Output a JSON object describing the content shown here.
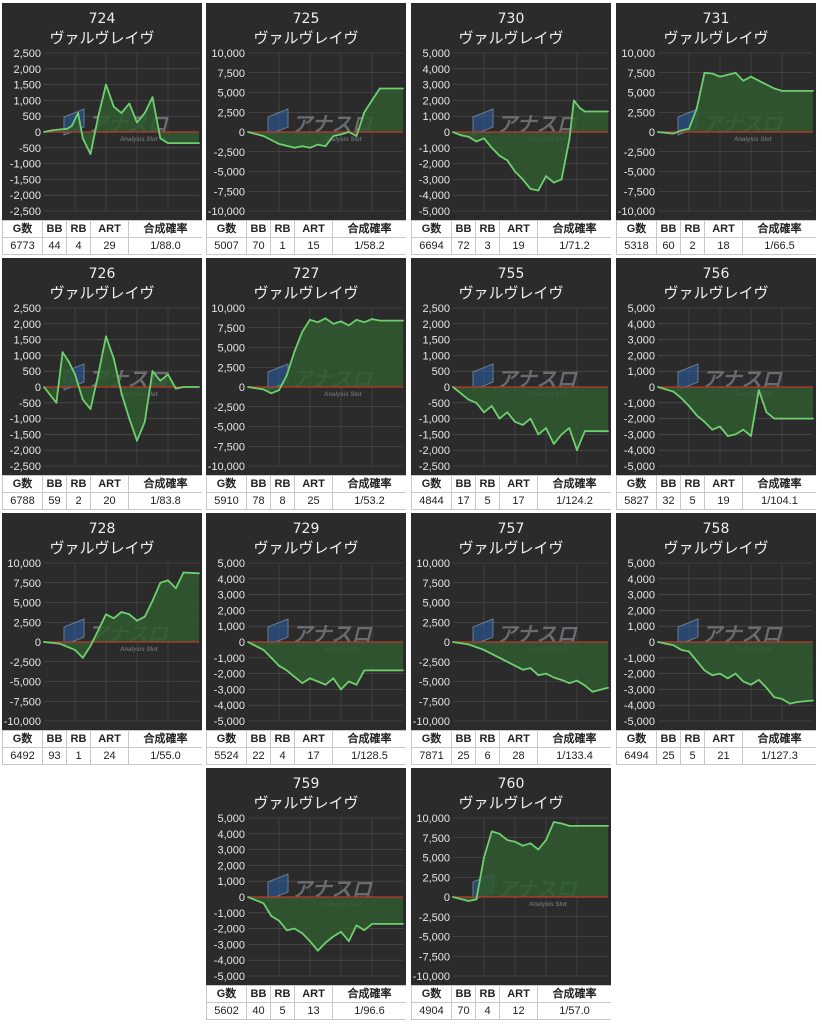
{
  "machine_name": "ヴァルヴレイヴ",
  "stat_headers": [
    "G数",
    "BB",
    "RB",
    "ART",
    "合成確率"
  ],
  "colors": {
    "panel": "#2b2b2b",
    "line": "#6fcf6f",
    "fill": "#2f5a2f",
    "zero_line": "#c0392b",
    "grid": "#555555"
  },
  "watermark": {
    "main": "アナスロ",
    "sub": "Analysis Slot"
  },
  "chart_data": [
    {
      "type": "area",
      "title": "724",
      "subtitle": "ヴァルヴレイヴ",
      "ylim": [
        -2500,
        2500
      ],
      "yticks": [
        "2,500",
        "2,000",
        "1,500",
        "1,000",
        "500",
        "0",
        "-500",
        "-1,000",
        "-1,500",
        "-2,000",
        "-2,500"
      ],
      "x": [
        0,
        0.05,
        0.1,
        0.15,
        0.18,
        0.22,
        0.25,
        0.3,
        0.35,
        0.4,
        0.45,
        0.5,
        0.55,
        0.6,
        0.65,
        0.7,
        0.75,
        0.8,
        0.85,
        1
      ],
      "y": [
        0,
        50,
        80,
        100,
        200,
        600,
        -200,
        -700,
        500,
        1500,
        800,
        600,
        900,
        300,
        600,
        1100,
        -200,
        -350,
        -350,
        -350
      ],
      "stats": {
        "g": "6773",
        "bb": "44",
        "rb": "4",
        "art": "29",
        "rate": "1/88.0"
      }
    },
    {
      "type": "area",
      "title": "725",
      "subtitle": "ヴァルヴレイヴ",
      "ylim": [
        -10000,
        10000
      ],
      "yticks": [
        "10,000",
        "7,500",
        "5,000",
        "2,500",
        "0",
        "-2,500",
        "-5,000",
        "-7,500",
        "-10,000"
      ],
      "x": [
        0,
        0.1,
        0.2,
        0.3,
        0.35,
        0.4,
        0.45,
        0.5,
        0.55,
        0.6,
        0.65,
        0.7,
        0.75,
        0.8,
        0.85,
        1
      ],
      "y": [
        0,
        -500,
        -1500,
        -2000,
        -1800,
        -2000,
        -1600,
        -1800,
        -500,
        -300,
        0,
        -500,
        2500,
        4000,
        5500,
        5500
      ],
      "stats": {
        "g": "5007",
        "bb": "70",
        "rb": "1",
        "art": "15",
        "rate": "1/58.2"
      }
    },
    {
      "type": "area",
      "title": "730",
      "subtitle": "ヴァルヴレイヴ",
      "ylim": [
        -5000,
        5000
      ],
      "yticks": [
        "5,000",
        "4,000",
        "3,000",
        "2,000",
        "1,000",
        "0",
        "-1,000",
        "-2,000",
        "-3,000",
        "-4,000",
        "-5,000"
      ],
      "x": [
        0,
        0.05,
        0.1,
        0.15,
        0.2,
        0.25,
        0.3,
        0.35,
        0.4,
        0.45,
        0.5,
        0.55,
        0.6,
        0.65,
        0.7,
        0.75,
        0.78,
        0.82,
        0.85,
        1
      ],
      "y": [
        0,
        -200,
        -300,
        -600,
        -400,
        -1000,
        -1500,
        -1800,
        -2500,
        -3000,
        -3600,
        -3700,
        -2800,
        -3200,
        -3000,
        -500,
        2000,
        1500,
        1300,
        1300
      ],
      "stats": {
        "g": "6694",
        "bb": "72",
        "rb": "3",
        "art": "19",
        "rate": "1/71.2"
      }
    },
    {
      "type": "area",
      "title": "731",
      "subtitle": "ヴァルヴレイヴ",
      "ylim": [
        -10000,
        10000
      ],
      "yticks": [
        "10,000",
        "7,500",
        "5,000",
        "2,500",
        "0",
        "-2,500",
        "-5,000",
        "-7,500",
        "-10,000"
      ],
      "x": [
        0,
        0.1,
        0.15,
        0.2,
        0.25,
        0.3,
        0.35,
        0.4,
        0.5,
        0.55,
        0.6,
        0.65,
        0.7,
        0.75,
        0.8,
        1
      ],
      "y": [
        0,
        -200,
        200,
        400,
        3000,
        7500,
        7400,
        7000,
        7500,
        6500,
        7000,
        6500,
        6000,
        5500,
        5200,
        5200
      ],
      "stats": {
        "g": "5318",
        "bb": "60",
        "rb": "2",
        "art": "18",
        "rate": "1/66.5"
      }
    },
    {
      "type": "area",
      "title": "726",
      "subtitle": "ヴァルヴレイヴ",
      "ylim": [
        -2500,
        2500
      ],
      "yticks": [
        "2,500",
        "2,000",
        "1,500",
        "1,000",
        "500",
        "0",
        "-500",
        "-1,000",
        "-1,500",
        "-2,000",
        "-2,500"
      ],
      "x": [
        0,
        0.08,
        0.12,
        0.16,
        0.2,
        0.25,
        0.3,
        0.35,
        0.4,
        0.45,
        0.5,
        0.55,
        0.6,
        0.65,
        0.7,
        0.75,
        0.8,
        0.85,
        0.9,
        1
      ],
      "y": [
        0,
        -500,
        1100,
        800,
        400,
        -400,
        -700,
        400,
        1600,
        900,
        -200,
        -1000,
        -1700,
        -1100,
        500,
        200,
        400,
        -50,
        0,
        0
      ],
      "stats": {
        "g": "6788",
        "bb": "59",
        "rb": "2",
        "art": "20",
        "rate": "1/83.8"
      }
    },
    {
      "type": "area",
      "title": "727",
      "subtitle": "ヴァルヴレイヴ",
      "ylim": [
        -10000,
        10000
      ],
      "yticks": [
        "10,000",
        "7,500",
        "5,000",
        "2,500",
        "0",
        "-2,500",
        "-5,000",
        "-7,500",
        "-10,000"
      ],
      "x": [
        0,
        0.1,
        0.15,
        0.2,
        0.25,
        0.3,
        0.35,
        0.4,
        0.45,
        0.5,
        0.55,
        0.6,
        0.65,
        0.7,
        0.75,
        0.8,
        0.85,
        1
      ],
      "y": [
        0,
        -300,
        -800,
        -400,
        1500,
        4500,
        7000,
        8500,
        8200,
        8700,
        8000,
        8300,
        7800,
        8500,
        8200,
        8600,
        8400,
        8400
      ],
      "stats": {
        "g": "5910",
        "bb": "78",
        "rb": "8",
        "art": "25",
        "rate": "1/53.2"
      }
    },
    {
      "type": "area",
      "title": "755",
      "subtitle": "ヴァルヴレイヴ",
      "ylim": [
        -2500,
        2500
      ],
      "yticks": [
        "2,500",
        "2,000",
        "1,500",
        "1,000",
        "500",
        "0",
        "-500",
        "-1,000",
        "-1,500",
        "-2,000",
        "-2,500"
      ],
      "x": [
        0,
        0.05,
        0.1,
        0.15,
        0.2,
        0.25,
        0.3,
        0.35,
        0.4,
        0.45,
        0.5,
        0.55,
        0.6,
        0.65,
        0.7,
        0.75,
        0.8,
        0.85,
        1
      ],
      "y": [
        0,
        -200,
        -400,
        -500,
        -800,
        -600,
        -1000,
        -800,
        -1100,
        -1200,
        -1000,
        -1500,
        -1300,
        -1800,
        -1500,
        -1300,
        -2000,
        -1400,
        -1400
      ],
      "stats": {
        "g": "4844",
        "bb": "17",
        "rb": "5",
        "art": "17",
        "rate": "1/124.2"
      }
    },
    {
      "type": "area",
      "title": "756",
      "subtitle": "ヴァルヴレイヴ",
      "ylim": [
        -5000,
        5000
      ],
      "yticks": [
        "5,000",
        "4,000",
        "3,000",
        "2,000",
        "1,000",
        "0",
        "-1,000",
        "-2,000",
        "-3,000",
        "-4,000",
        "-5,000"
      ],
      "x": [
        0,
        0.1,
        0.15,
        0.2,
        0.25,
        0.3,
        0.35,
        0.4,
        0.45,
        0.5,
        0.55,
        0.6,
        0.65,
        0.7,
        0.75,
        1
      ],
      "y": [
        0,
        -300,
        -700,
        -1200,
        -1800,
        -2200,
        -2700,
        -2500,
        -3100,
        -3000,
        -2700,
        -3100,
        -200,
        -1600,
        -2000,
        -2000
      ],
      "stats": {
        "g": "5827",
        "bb": "32",
        "rb": "5",
        "art": "19",
        "rate": "1/104.1"
      }
    },
    {
      "type": "area",
      "title": "728",
      "subtitle": "ヴァルヴレイヴ",
      "ylim": [
        -10000,
        10000
      ],
      "yticks": [
        "10,000",
        "7,500",
        "5,000",
        "2,500",
        "0",
        "-2,500",
        "-5,000",
        "-7,500",
        "-10,000"
      ],
      "x": [
        0,
        0.1,
        0.2,
        0.25,
        0.3,
        0.35,
        0.4,
        0.45,
        0.5,
        0.55,
        0.6,
        0.65,
        0.7,
        0.75,
        0.8,
        0.85,
        0.9,
        1
      ],
      "y": [
        0,
        -200,
        -1000,
        -2000,
        -500,
        1500,
        3500,
        3000,
        3800,
        3500,
        2700,
        3200,
        5200,
        7500,
        7800,
        6800,
        8800,
        8700
      ],
      "stats": {
        "g": "6492",
        "bb": "93",
        "rb": "1",
        "art": "24",
        "rate": "1/55.0"
      }
    },
    {
      "type": "area",
      "title": "729",
      "subtitle": "ヴァルヴレイヴ",
      "ylim": [
        -5000,
        5000
      ],
      "yticks": [
        "5,000",
        "4,000",
        "3,000",
        "2,000",
        "1,000",
        "0",
        "-1,000",
        "-2,000",
        "-3,000",
        "-4,000",
        "-5,000"
      ],
      "x": [
        0,
        0.1,
        0.15,
        0.2,
        0.25,
        0.3,
        0.35,
        0.4,
        0.45,
        0.5,
        0.55,
        0.6,
        0.65,
        0.7,
        0.75,
        1
      ],
      "y": [
        0,
        -500,
        -1000,
        -1500,
        -1800,
        -2200,
        -2600,
        -2300,
        -2500,
        -2700,
        -2300,
        -3000,
        -2500,
        -2700,
        -1800,
        -1800
      ],
      "stats": {
        "g": "5524",
        "bb": "22",
        "rb": "4",
        "art": "17",
        "rate": "1/128.5"
      }
    },
    {
      "type": "area",
      "title": "757",
      "subtitle": "ヴァルヴレイヴ",
      "ylim": [
        -10000,
        10000
      ],
      "yticks": [
        "10,000",
        "7,500",
        "5,000",
        "2,500",
        "0",
        "-2,500",
        "-5,000",
        "-7,500",
        "-10,000"
      ],
      "x": [
        0,
        0.1,
        0.2,
        0.3,
        0.35,
        0.4,
        0.45,
        0.5,
        0.55,
        0.6,
        0.65,
        0.7,
        0.75,
        0.8,
        0.85,
        0.9,
        1
      ],
      "y": [
        0,
        -300,
        -1000,
        -2000,
        -2500,
        -3000,
        -3500,
        -3300,
        -4200,
        -4000,
        -4500,
        -4800,
        -5200,
        -4900,
        -5500,
        -6300,
        -5800
      ],
      "stats": {
        "g": "7871",
        "bb": "25",
        "rb": "6",
        "art": "28",
        "rate": "1/133.4"
      }
    },
    {
      "type": "area",
      "title": "758",
      "subtitle": "ヴァルヴレイヴ",
      "ylim": [
        -5000,
        5000
      ],
      "yticks": [
        "5,000",
        "4,000",
        "3,000",
        "2,000",
        "1,000",
        "0",
        "-1,000",
        "-2,000",
        "-3,000",
        "-4,000",
        "-5,000"
      ],
      "x": [
        0,
        0.1,
        0.15,
        0.2,
        0.25,
        0.3,
        0.35,
        0.4,
        0.45,
        0.5,
        0.55,
        0.6,
        0.65,
        0.7,
        0.75,
        0.8,
        0.85,
        0.9,
        1
      ],
      "y": [
        0,
        -200,
        -500,
        -600,
        -1200,
        -1800,
        -2100,
        -2000,
        -2300,
        -2000,
        -2500,
        -2700,
        -2400,
        -2900,
        -3500,
        -3600,
        -3900,
        -3800,
        -3700
      ],
      "stats": {
        "g": "6494",
        "bb": "25",
        "rb": "5",
        "art": "21",
        "rate": "1/127.3"
      }
    },
    {
      "type": "area",
      "title": "759",
      "subtitle": "ヴァルヴレイヴ",
      "ylim": [
        -5000,
        5000
      ],
      "yticks": [
        "5,000",
        "4,000",
        "3,000",
        "2,000",
        "1,000",
        "0",
        "-1,000",
        "-2,000",
        "-3,000",
        "-4,000",
        "-5,000"
      ],
      "x": [
        0,
        0.1,
        0.15,
        0.2,
        0.25,
        0.3,
        0.35,
        0.4,
        0.45,
        0.5,
        0.55,
        0.6,
        0.65,
        0.7,
        0.75,
        0.8,
        1
      ],
      "y": [
        0,
        -400,
        -1200,
        -1500,
        -2100,
        -2000,
        -2300,
        -2800,
        -3400,
        -2900,
        -2500,
        -2200,
        -2800,
        -1800,
        -2100,
        -1700,
        -1700
      ],
      "stats": {
        "g": "5602",
        "bb": "40",
        "rb": "5",
        "art": "13",
        "rate": "1/96.6"
      }
    },
    {
      "type": "area",
      "title": "760",
      "subtitle": "ヴァルヴレイヴ",
      "ylim": [
        -10000,
        10000
      ],
      "yticks": [
        "10,000",
        "7,500",
        "5,000",
        "2,500",
        "0",
        "-2,500",
        "-5,000",
        "-7,500",
        "-10,000"
      ],
      "x": [
        0,
        0.1,
        0.15,
        0.2,
        0.25,
        0.3,
        0.35,
        0.4,
        0.45,
        0.5,
        0.55,
        0.6,
        0.65,
        0.7,
        0.75,
        0.8,
        1
      ],
      "y": [
        0,
        -500,
        -300,
        5000,
        8300,
        8000,
        7200,
        7000,
        6500,
        6800,
        6000,
        7200,
        9500,
        9300,
        9000,
        9000,
        9000
      ],
      "stats": {
        "g": "4904",
        "bb": "70",
        "rb": "4",
        "art": "12",
        "rate": "1/57.0"
      }
    }
  ]
}
